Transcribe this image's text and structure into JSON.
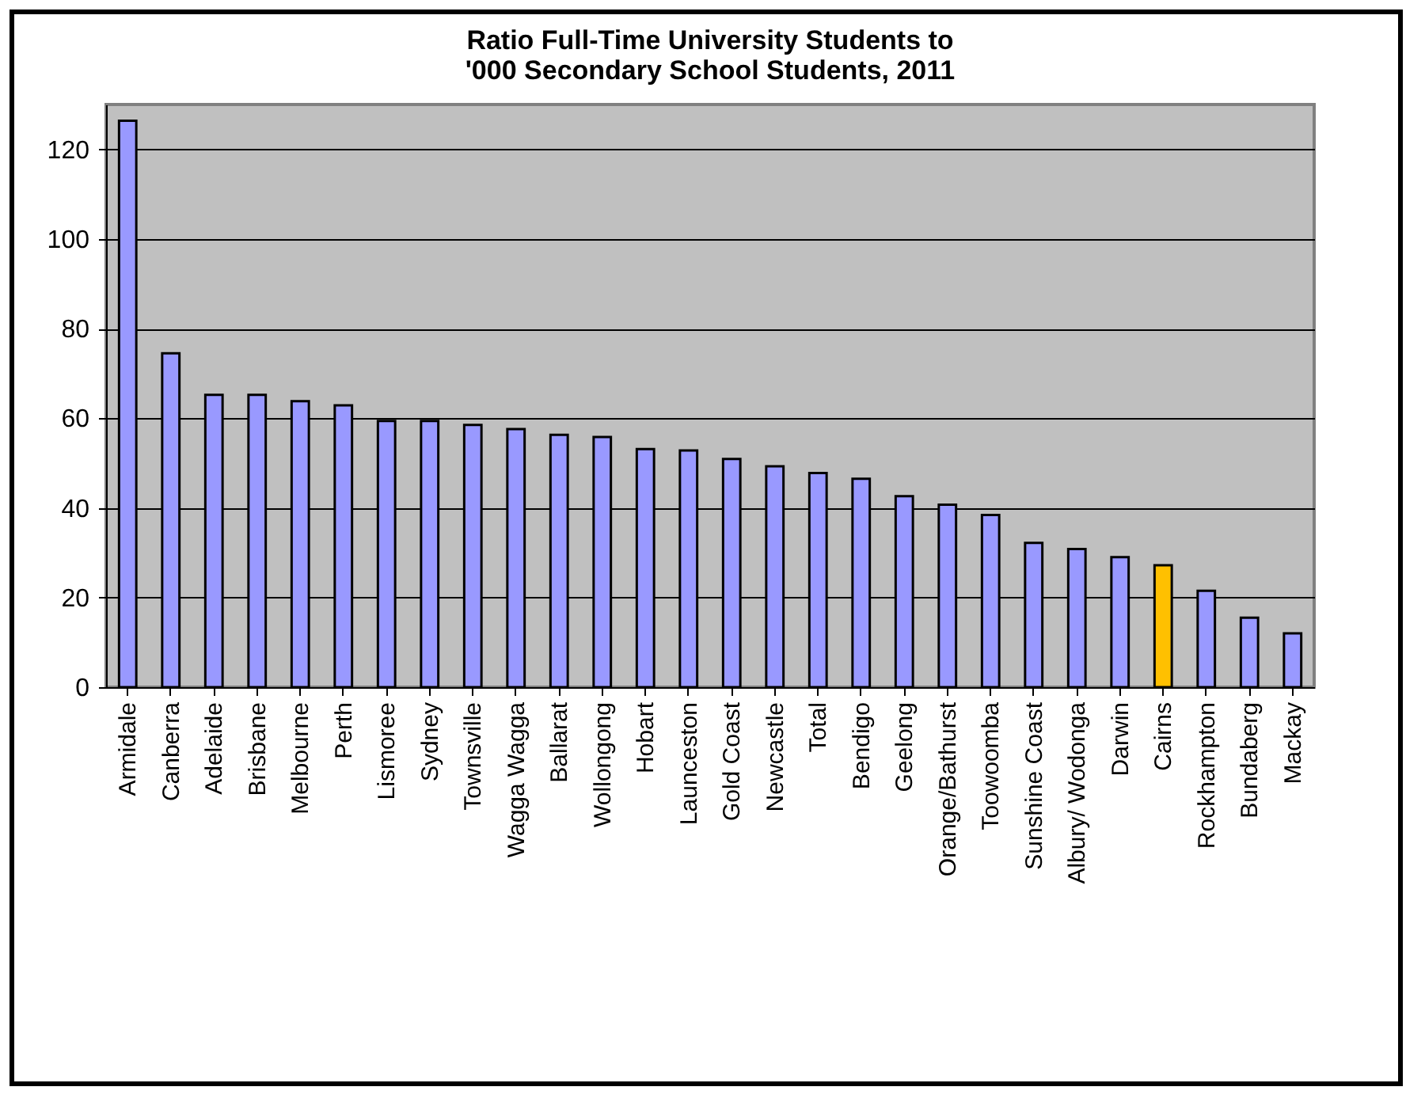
{
  "chart_data": {
    "type": "bar",
    "title": "Ratio Full-Time University Students to\n'000 Secondary School Students, 2011",
    "categories": [
      "Armidale",
      "Canberra",
      "Adelaide",
      "Brisbane",
      "Melbourne",
      "Perth",
      "Lismoree",
      "Sydney",
      "Townsville",
      "Wagga Wagga",
      "Ballarat",
      "Wollongong",
      "Hobart",
      "Launceston",
      "Gold Coast",
      "Newcastle",
      "Total",
      "Bendigo",
      "Geelong",
      "Orange/Bathurst",
      "Toowoomba",
      "Sunshine Coast",
      "Albury/ Wodonga",
      "Darwin",
      "Cairns",
      "Rockhampton",
      "Bundaberg",
      "Mackay"
    ],
    "values": [
      126.4,
      74.5,
      65.2,
      65.2,
      63.8,
      62.9,
      59.4,
      59.4,
      58.5,
      57.6,
      56.3,
      55.8,
      53.1,
      52.8,
      50.9,
      49.3,
      47.8,
      46.5,
      42.6,
      40.7,
      38.4,
      32.2,
      30.8,
      29.0,
      27.2,
      21.5,
      15.5,
      12.0
    ],
    "colors": [
      "#9999ff",
      "#9999ff",
      "#9999ff",
      "#9999ff",
      "#9999ff",
      "#9999ff",
      "#9999ff",
      "#9999ff",
      "#9999ff",
      "#9999ff",
      "#9999ff",
      "#9999ff",
      "#9999ff",
      "#9999ff",
      "#9999ff",
      "#9999ff",
      "#9999ff",
      "#9999ff",
      "#9999ff",
      "#9999ff",
      "#9999ff",
      "#9999ff",
      "#9999ff",
      "#9999ff",
      "#ffc000",
      "#9999ff",
      "#9999ff",
      "#9999ff"
    ],
    "ylim": [
      0,
      130
    ],
    "yticks": [
      0,
      20,
      40,
      60,
      80,
      100,
      120
    ],
    "grid": "y"
  }
}
